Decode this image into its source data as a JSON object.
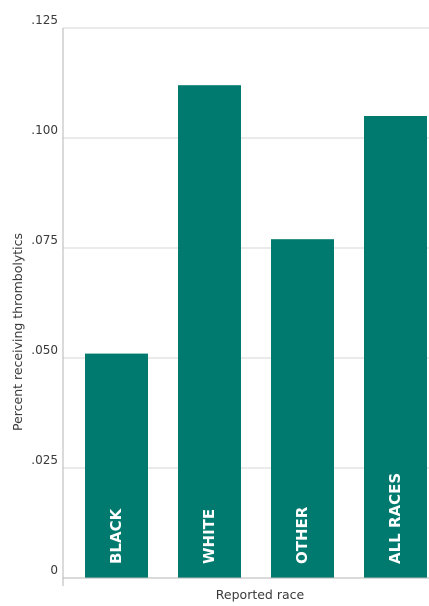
{
  "chart_data": {
    "type": "bar",
    "categories": [
      "BLACK",
      "WHITE",
      "OTHER",
      "ALL RACES"
    ],
    "values": [
      0.051,
      0.112,
      0.077,
      0.105
    ],
    "title": "",
    "xlabel": "Reported race",
    "ylabel": "Percent receiving thrombolytics",
    "ylim": [
      0,
      0.125
    ],
    "yticks": [
      0,
      0.025,
      0.05,
      0.075,
      0.1,
      0.125
    ],
    "ytick_labels": [
      "0",
      ".025",
      ".050",
      ".075",
      ".100",
      ".125"
    ],
    "grid": true,
    "bar_color": "#007a6e",
    "grid_color": "#c8c8c8"
  }
}
